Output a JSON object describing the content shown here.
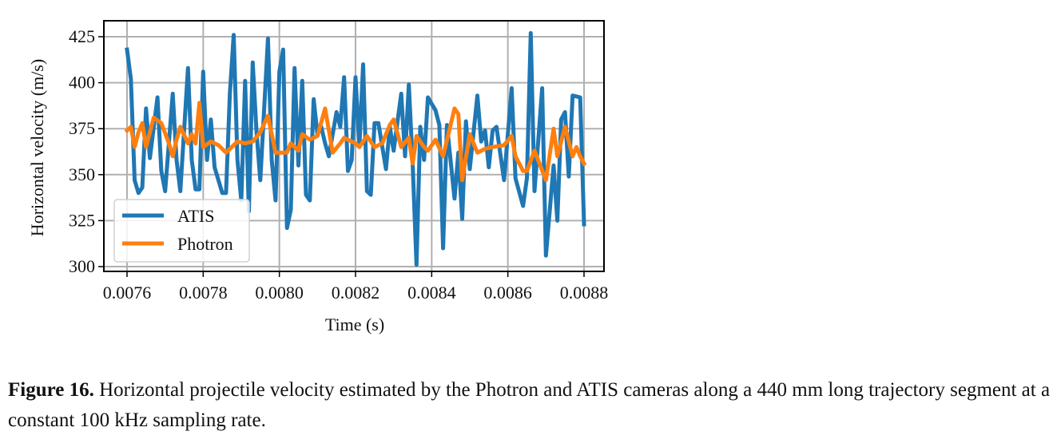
{
  "chart_data": {
    "type": "line",
    "xlabel": "Time (s)",
    "ylabel": "Horizontal velocity (m/s)",
    "xlim": [
      0.00757,
      0.00883
    ],
    "ylim": [
      297,
      434
    ],
    "xticks": [
      0.0076,
      0.0078,
      0.008,
      0.0082,
      0.0084,
      0.0086,
      0.0088
    ],
    "xtick_labels": [
      "0.0076",
      "0.0078",
      "0.0080",
      "0.0082",
      "0.0084",
      "0.0086",
      "0.0088"
    ],
    "yticks": [
      300,
      325,
      350,
      375,
      400,
      425
    ],
    "ytick_labels": [
      "300",
      "325",
      "350",
      "375",
      "400",
      "425"
    ],
    "grid": true,
    "legend_position": "lower-left",
    "series": [
      {
        "name": "ATIS",
        "color": "#1f77b4",
        "x": [
          0.0076,
          0.00761,
          0.00762,
          0.00763,
          0.00764,
          0.00765,
          0.00766,
          0.00768,
          0.00769,
          0.0077,
          0.00772,
          0.00773,
          0.00774,
          0.00776,
          0.00777,
          0.00778,
          0.00779,
          0.0078,
          0.00781,
          0.00782,
          0.00783,
          0.00785,
          0.00786,
          0.00787,
          0.00788,
          0.00789,
          0.0079,
          0.00791,
          0.00792,
          0.00793,
          0.00794,
          0.00795,
          0.00797,
          0.00798,
          0.00799,
          0.008,
          0.00801,
          0.00802,
          0.00803,
          0.00804,
          0.00805,
          0.00806,
          0.00807,
          0.00808,
          0.00809,
          0.0081,
          0.00811,
          0.00812,
          0.00813,
          0.00815,
          0.00816,
          0.00817,
          0.00818,
          0.00819,
          0.0082,
          0.00821,
          0.00822,
          0.00823,
          0.00824,
          0.00825,
          0.00826,
          0.00828,
          0.00829,
          0.0083,
          0.00832,
          0.00833,
          0.00834,
          0.00835,
          0.00836,
          0.00837,
          0.00838,
          0.00839,
          0.00841,
          0.00842,
          0.00843,
          0.00844,
          0.00846,
          0.00847,
          0.00848,
          0.00849,
          0.0085,
          0.00852,
          0.00853,
          0.00854,
          0.00855,
          0.00856,
          0.00857,
          0.00859,
          0.00861,
          0.00862,
          0.00864,
          0.00865,
          0.00866,
          0.00867,
          0.00869,
          0.0087,
          0.00872,
          0.00873,
          0.00874,
          0.00875,
          0.00876,
          0.00877,
          0.00879,
          0.0088
        ],
        "y": [
          418,
          402,
          347,
          340,
          343,
          386,
          359,
          392,
          352,
          341,
          394,
          358,
          341,
          408,
          358,
          342,
          342,
          406,
          358,
          380,
          354,
          340,
          340,
          394,
          426,
          358,
          336,
          401,
          330,
          411,
          373,
          347,
          424,
          358,
          336,
          406,
          418,
          321,
          331,
          408,
          355,
          401,
          339,
          336,
          391,
          372,
          376,
          367,
          360,
          384,
          376,
          403,
          352,
          358,
          403,
          365,
          410,
          341,
          339,
          378,
          378,
          353,
          376,
          363,
          394,
          360,
          399,
          356,
          301,
          376,
          358,
          392,
          385,
          377,
          310,
          377,
          337,
          362,
          326,
          379,
          353,
          393,
          368,
          374,
          354,
          374,
          376,
          347,
          397,
          348,
          333,
          348,
          427,
          341,
          397,
          306,
          355,
          325,
          380,
          384,
          349,
          393,
          392,
          323
        ]
      },
      {
        "name": "Photron",
        "color": "#ff7f0e",
        "x": [
          0.0076,
          0.00761,
          0.00762,
          0.00763,
          0.00764,
          0.00765,
          0.00767,
          0.00769,
          0.00771,
          0.00772,
          0.00773,
          0.00774,
          0.00776,
          0.00777,
          0.00778,
          0.00779,
          0.0078,
          0.00782,
          0.00784,
          0.00786,
          0.00789,
          0.00791,
          0.00793,
          0.00795,
          0.00797,
          0.00799,
          0.00802,
          0.00803,
          0.00805,
          0.00806,
          0.00808,
          0.0081,
          0.00812,
          0.00814,
          0.00816,
          0.00817,
          0.0082,
          0.00821,
          0.00823,
          0.00825,
          0.00827,
          0.00829,
          0.0083,
          0.00832,
          0.00834,
          0.00835,
          0.00836,
          0.00838,
          0.00839,
          0.00841,
          0.00843,
          0.00846,
          0.00847,
          0.00848,
          0.0085,
          0.00852,
          0.00854,
          0.00856,
          0.00859,
          0.00861,
          0.00862,
          0.00864,
          0.00865,
          0.00867,
          0.0087,
          0.00872,
          0.00873,
          0.00875,
          0.00877,
          0.00878,
          0.00879,
          0.0088
        ],
        "y": [
          374,
          376,
          365,
          373,
          378,
          365,
          381,
          378,
          367,
          360,
          369,
          376,
          367,
          372,
          367,
          389,
          365,
          368,
          366,
          362,
          368,
          367,
          368,
          373,
          382,
          362,
          362,
          367,
          363,
          372,
          369,
          371,
          386,
          362,
          367,
          370,
          367,
          365,
          371,
          365,
          367,
          377,
          380,
          365,
          370,
          356,
          371,
          365,
          363,
          369,
          360,
          386,
          383,
          347,
          372,
          362,
          364,
          365,
          366,
          371,
          360,
          352,
          352,
          363,
          347,
          375,
          360,
          376,
          360,
          365,
          360,
          356
        ]
      }
    ]
  },
  "caption": {
    "label": "Figure 16.",
    "text": " Horizontal projectile velocity estimated by the Photron and ATIS cameras along a 440 mm long trajectory segment at a constant 100 kHz sampling rate."
  }
}
